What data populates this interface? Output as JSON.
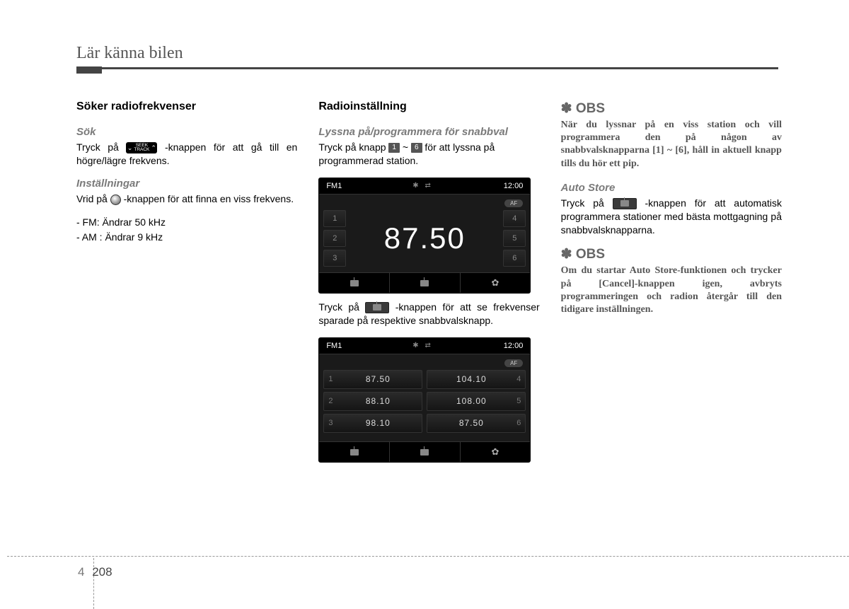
{
  "header": {
    "title": "Lär känna bilen"
  },
  "footer": {
    "chapter": "4",
    "page": "208"
  },
  "col1": {
    "h1": "Söker radiofrekvenser",
    "sok": {
      "h": "Sök",
      "seek_label": "SEEK\nTRACK",
      "text_a": "Tryck  på ",
      "text_b": " -knappen  för  att  gå till en högre/lägre frekvens."
    },
    "inst": {
      "h": "Inställningar",
      "text_a": "Vrid på ",
      "text_b": " -knappen för att finna en viss frekvens.",
      "b1": "- FM: Ändrar 50 kHz",
      "b2": "- AM : Ändrar 9 kHz"
    }
  },
  "col2": {
    "h1": "Radioinställning",
    "lyss": {
      "h": "Lyssna på/programmera för snabbval",
      "text_a": "Tryck på knapp ",
      "key1": "1",
      "tilde": " ~ ",
      "key6": "6",
      "text_b": " för att lyssna på programmerad station."
    },
    "disp1": {
      "band": "FM1",
      "clock": "12:00",
      "af": "AF",
      "freq": "87.50",
      "presets_left": [
        "1",
        "2",
        "3"
      ],
      "presets_right": [
        "4",
        "5",
        "6"
      ],
      "gear": "✿"
    },
    "mid": {
      "text_a": "Tryck  på ",
      "text_b": " -knappen  för  att  se frekvenser  sparade  på  respektive snabbvalsknapp."
    },
    "disp2": {
      "band": "FM1",
      "clock": "12:00",
      "af": "AF",
      "rows": [
        {
          "ln": "1",
          "lv": "87.50",
          "rv": "104.10",
          "rn": "4"
        },
        {
          "ln": "2",
          "lv": "88.10",
          "rv": "108.00",
          "rn": "5"
        },
        {
          "ln": "3",
          "lv": "98.10",
          "rv": "87.50",
          "rn": "6"
        }
      ],
      "gear": "✿"
    }
  },
  "col3": {
    "obs1": {
      "h": "OBS",
      "body": "När du lyssnar på en viss station och vill programmera den på någon av snabbvalsknapparna [1] ~ [6], håll in aktuell knapp tills du hör ett pip."
    },
    "auto": {
      "h": "Auto Store",
      "text_a": "Tryck  på ",
      "text_b": " -knappen  för  att automatisk  programmera  stationer  med bästa mottgagning på snabbvalsknapparna."
    },
    "obs2": {
      "h": "OBS",
      "body": "Om du startar Auto Store-funktionen och trycker på [Cancel]-knappen igen, avbryts programmeringen och radion återgår till den tidigare inställningen."
    }
  },
  "colors": {
    "text": "#000000",
    "muted": "#7a7a7a",
    "obs": "#666666",
    "bg": "#ffffff"
  }
}
